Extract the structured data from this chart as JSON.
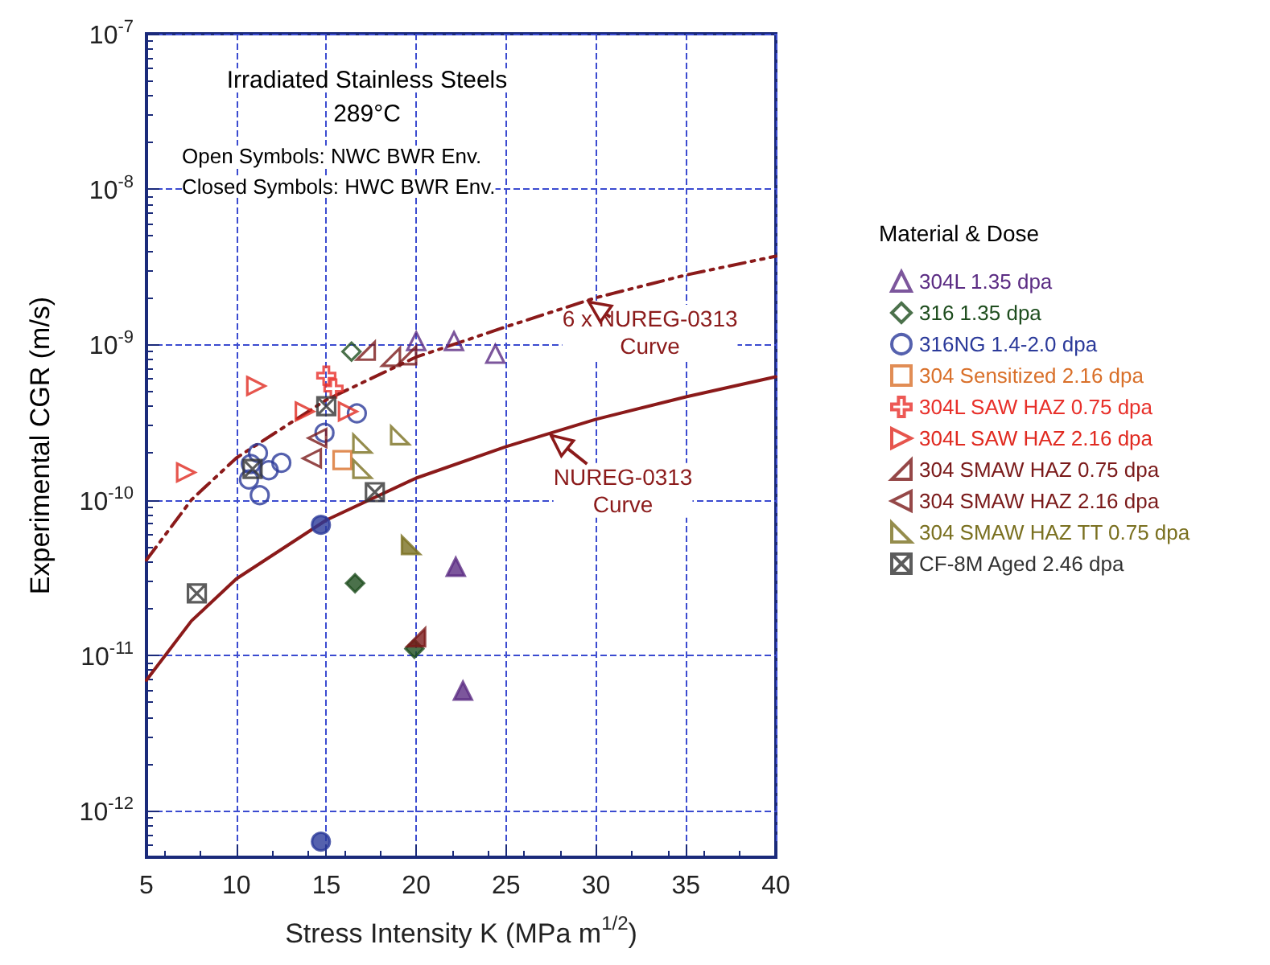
{
  "chart_data": {
    "type": "scatter",
    "xlabel": "Stress Intensity K (MPa m$^{1/2}$)",
    "ylabel": "Experimental CGR (m/s)",
    "legend_title": "Material & Dose",
    "annotations": [
      "Irradiated Stainless Steels",
      "289°C",
      "Open Symbols: NWC BWR Env.",
      "Closed Symbols: HWC BWR Env."
    ],
    "log": "y",
    "grid": true,
    "legend": "right",
    "xlim": [
      5,
      40
    ],
    "xticks": [
      5,
      10,
      15,
      20,
      25,
      30,
      35,
      40
    ],
    "ylim": [
      5e-13,
      1e-07
    ],
    "yticks": [
      {
        "value": 1e-12,
        "label": "10$^{-12}$"
      },
      {
        "value": 1e-11,
        "label": "10$^{-11}$"
      },
      {
        "value": 1e-10,
        "label": "10$^{-10}$"
      },
      {
        "value": 1e-09,
        "label": "10$^{-9}$"
      },
      {
        "value": 1e-08,
        "label": "10$^{-8}$"
      },
      {
        "value": 1e-07,
        "label": "10$^{-7}$"
      }
    ],
    "series": [
      {
        "name": "304L 1.35 dpa",
        "color": "#5b2c83",
        "marker": "triangle",
        "x": [
          20.0,
          22.1,
          24.4
        ],
        "values": [
          1.05e-09,
          1.05e-09,
          8.7e-10
        ]
      },
      {
        "name": "316 1.35 dpa",
        "color": "#1e4d1e",
        "marker": "diamond",
        "x": [
          16.4
        ],
        "values": [
          9e-10
        ]
      },
      {
        "name": "316NG 1.4-2.0 dpa",
        "color": "#2b3a9a",
        "marker": "circle",
        "x": [
          11.2,
          10.8,
          11.8,
          12.5,
          11.3,
          10.7,
          16.7,
          14.9
        ],
        "values": [
          2e-10,
          1.7e-10,
          1.55e-10,
          1.73e-10,
          1.07e-10,
          1.35e-10,
          3.6e-10,
          2.7e-10
        ]
      },
      {
        "name": "304 Sensitized 2.16 dpa",
        "color": "#d9702a",
        "marker": "square",
        "x": [
          15.9
        ],
        "values": [
          1.8e-10
        ]
      },
      {
        "name": "304L SAW HAZ 0.75 dpa",
        "color": "#e8302a",
        "marker": "cross",
        "x": [
          15.0,
          15.4
        ],
        "values": [
          6.3e-10,
          5.2e-10
        ]
      },
      {
        "name": "304L SAW HAZ 2.16 dpa",
        "color": "#e02a20",
        "marker": "triangle-right",
        "x": [
          11.1,
          7.2,
          13.8,
          16.2
        ],
        "values": [
          5.4e-10,
          1.5e-10,
          3.7e-10,
          3.7e-10
        ]
      },
      {
        "name": "304 SMAW HAZ 0.75 dpa",
        "color": "#7a1a1a",
        "marker": "triangle-corner-right",
        "x": [
          17.2,
          18.6,
          19.5
        ],
        "values": [
          9.1e-10,
          8.3e-10,
          8.5e-10
        ]
      },
      {
        "name": "304 SMAW HAZ 2.16 dpa",
        "color": "#7a1a1a",
        "marker": "triangle-left",
        "x": [
          14.5,
          14.2
        ],
        "values": [
          2.5e-10,
          1.85e-10
        ]
      },
      {
        "name": "304 SMAW HAZ TT 0.75 dpa",
        "color": "#7a7020",
        "marker": "triangle-corner-left",
        "x": [
          17.0,
          17.0,
          19.1
        ],
        "values": [
          2.3e-10,
          1.58e-10,
          2.6e-10
        ]
      },
      {
        "name": "CF-8M Aged 2.46 dpa",
        "color": "#333333",
        "marker": "cross-square",
        "x": [
          15.0,
          10.9,
          17.7,
          7.8
        ],
        "values": [
          4e-10,
          1.58e-10,
          1.12e-10,
          2.5e-11
        ]
      },
      {
        "color": "#5b2c83",
        "marker": "triangle",
        "x": [
          22.2,
          22.6
        ],
        "values": [
          3.7e-11,
          5.9e-12
        ]
      },
      {
        "color": "#1e4d1e",
        "marker": "diamond",
        "x": [
          16.6,
          19.9
        ],
        "values": [
          2.9e-11,
          1.1e-11
        ]
      },
      {
        "color": "#2b3a9a",
        "marker": "circle",
        "x": [
          14.7,
          14.7
        ],
        "values": [
          6.9e-11,
          6.3e-13
        ]
      },
      {
        "color": "#7a1a1a",
        "marker": "triangle-corner-right",
        "x": [
          20.0
        ],
        "values": [
          1.3e-11
        ]
      },
      {
        "color": "#7a7020",
        "marker": "triangle-corner-left",
        "x": [
          19.7
        ],
        "values": [
          5.1e-11
        ]
      },
      {
        "name": "NUREG-0313 Curve",
        "type": "line",
        "color": "#8b1a1a",
        "marker": "none",
        "line_style": "solid",
        "x": [
          5,
          7.5,
          10,
          15,
          20,
          25,
          30,
          35,
          40
        ],
        "values": [
          6.9e-12,
          1.66e-11,
          3.1e-11,
          7.4e-11,
          1.38e-10,
          2.2e-10,
          3.3e-10,
          4.6e-10,
          6.2e-10
        ]
      },
      {
        "name": "6 x NUREG-0313 Curve",
        "type": "line",
        "color": "#8b1a1a",
        "marker": "none",
        "line_style": "dashed",
        "x": [
          5,
          7.5,
          10,
          15,
          20,
          25,
          30,
          35,
          40
        ],
        "values": [
          4.1e-11,
          1e-10,
          1.86e-10,
          4.4e-10,
          8.3e-10,
          1.3e-09,
          2e-09,
          2.8e-09,
          3.7e-09
        ]
      }
    ]
  }
}
